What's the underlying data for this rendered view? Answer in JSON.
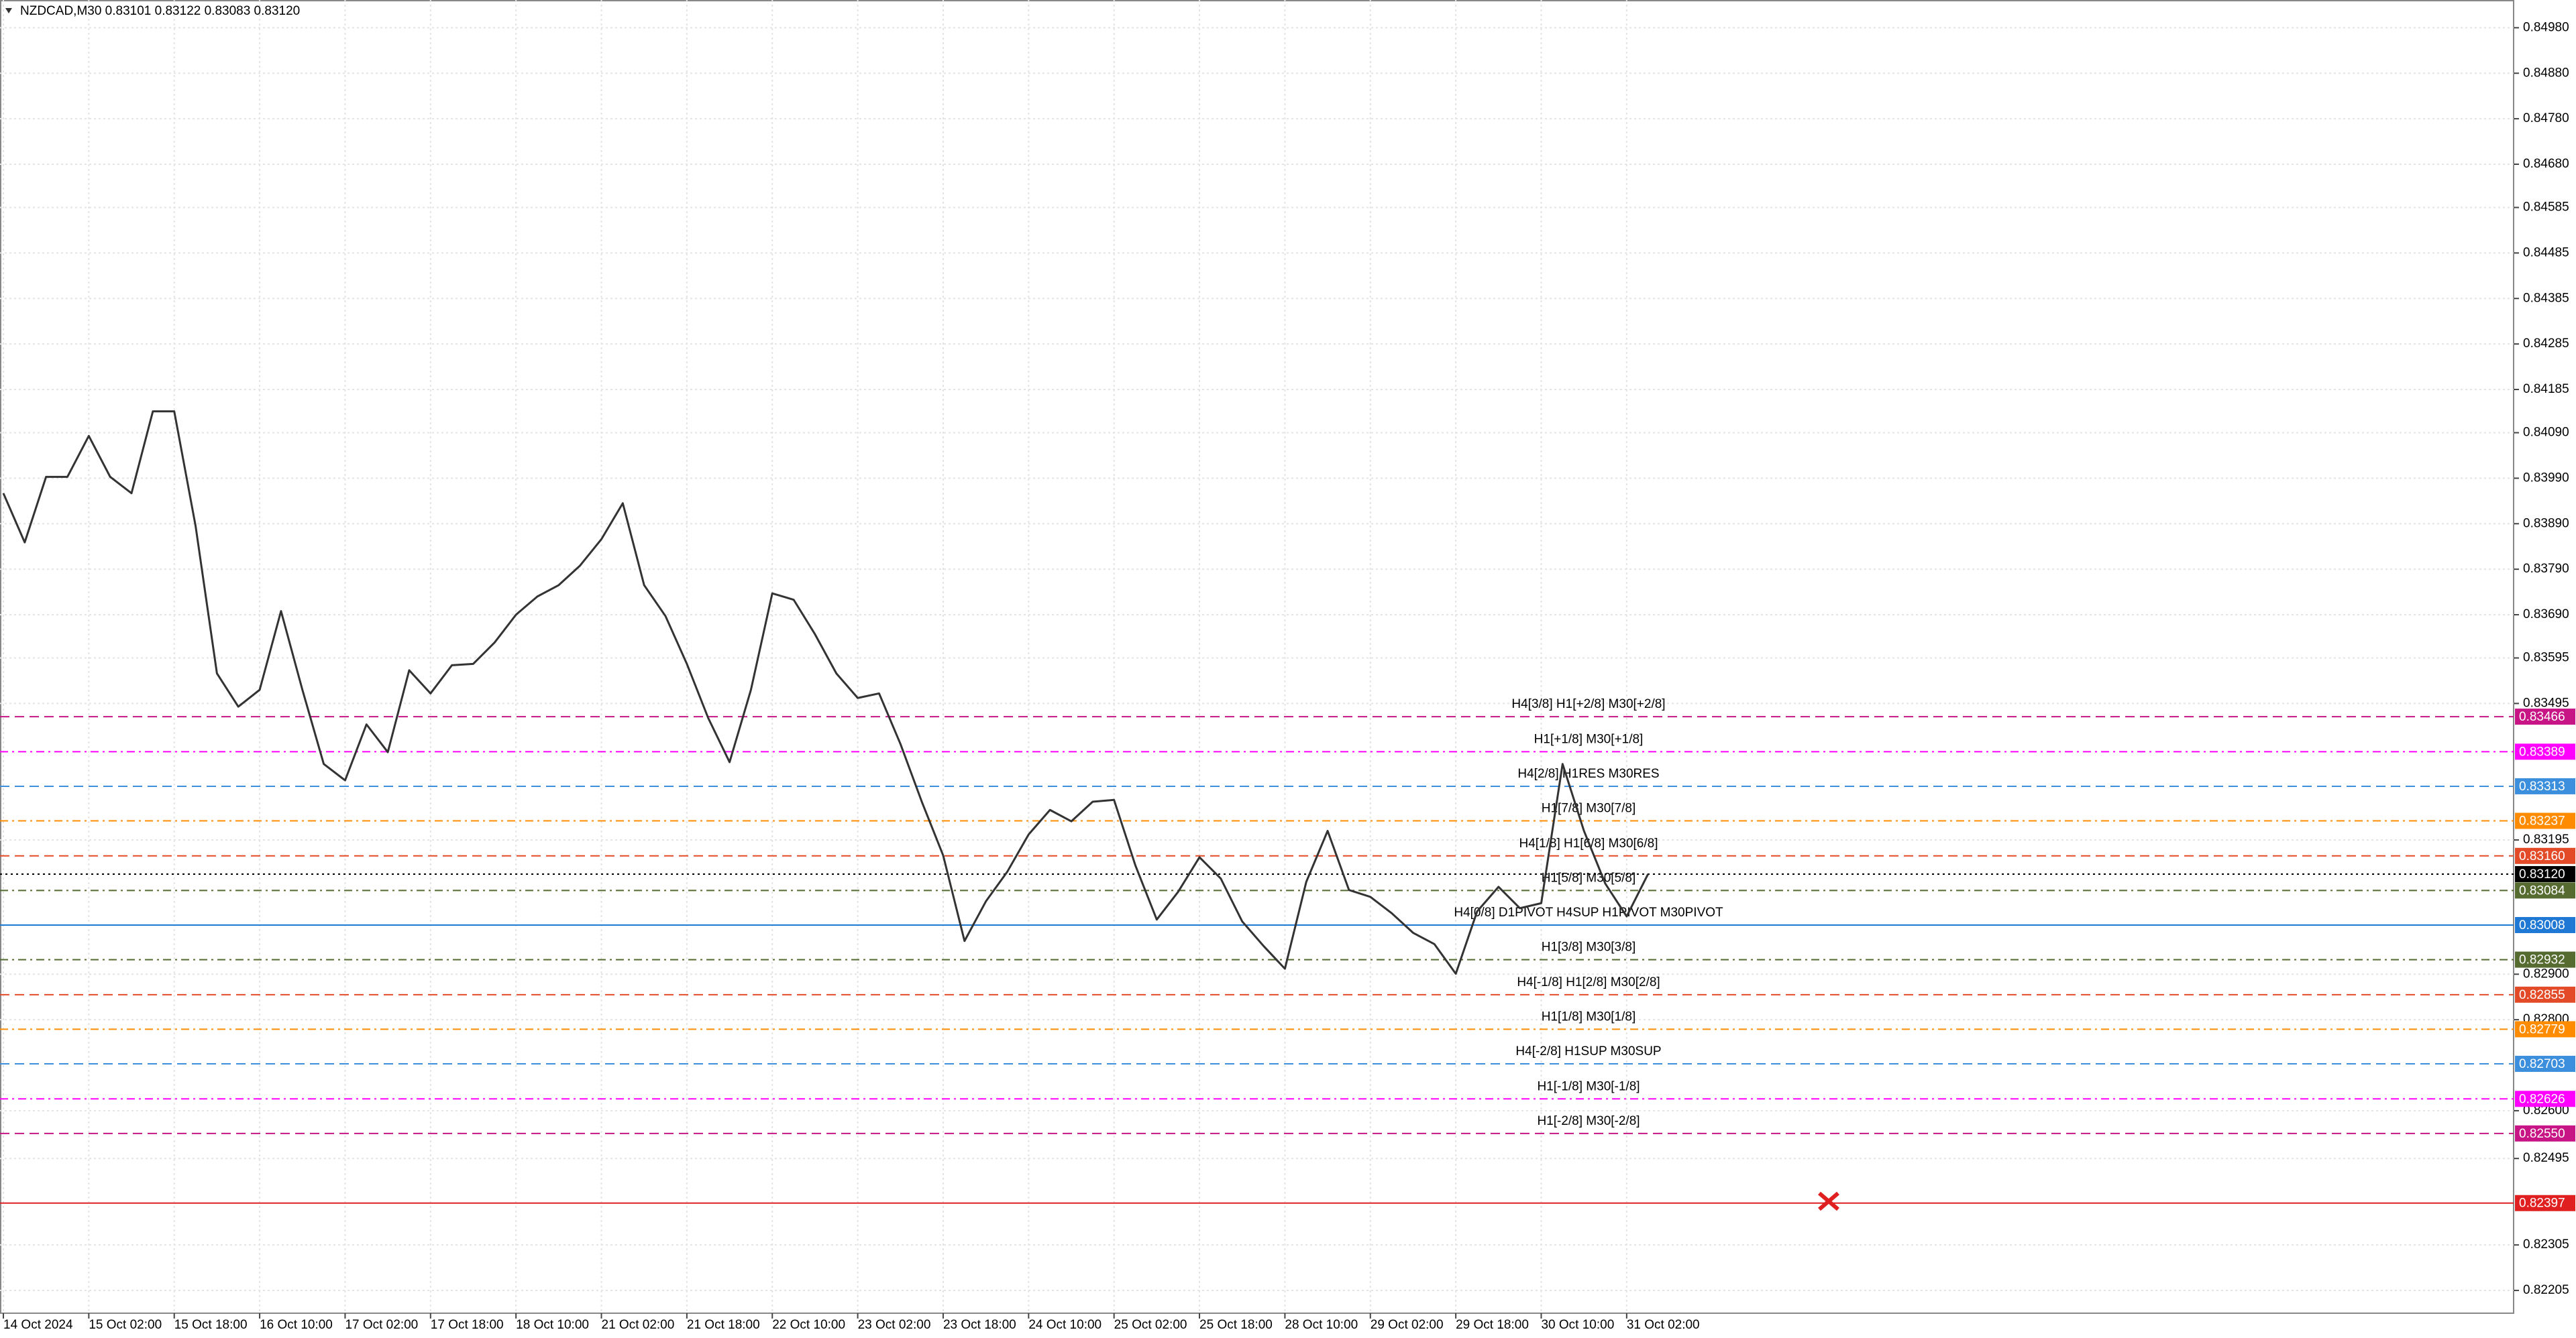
{
  "chart_data": {
    "type": "line",
    "title": "NZDCAD,M30  0.83101 0.83122 0.83083 0.83120",
    "categories": [
      "14 Oct 2024",
      null,
      null,
      null,
      "15 Oct 02:00",
      null,
      null,
      null,
      "15 Oct 18:00",
      null,
      null,
      null,
      "16 Oct 10:00",
      null,
      null,
      null,
      "17 Oct 02:00",
      null,
      null,
      null,
      "17 Oct 18:00",
      null,
      null,
      null,
      "18 Oct 10:00",
      null,
      null,
      null,
      "21 Oct 02:00",
      null,
      null,
      null,
      "21 Oct 18:00",
      null,
      null,
      null,
      "22 Oct 10:00",
      null,
      null,
      null,
      "23 Oct 02:00",
      null,
      null,
      null,
      "23 Oct 18:00",
      null,
      null,
      null,
      "24 Oct 10:00",
      null,
      null,
      null,
      "25 Oct 02:00",
      null,
      null,
      null,
      "25 Oct 18:00",
      null,
      null,
      null,
      "28 Oct 10:00",
      null,
      null,
      null,
      "29 Oct 02:00",
      null,
      null,
      null,
      "29 Oct 18:00",
      null,
      null,
      null,
      "30 Oct 10:00",
      null,
      null,
      null,
      "31 Oct 02:00",
      null
    ],
    "series": [
      {
        "name": "NZDCAD",
        "color": "#333333",
        "values": [
          0.83957,
          0.83849,
          0.83993,
          0.83993,
          0.84083,
          0.83993,
          0.83957,
          0.84137,
          0.84137,
          0.83885,
          0.83561,
          0.83488,
          0.83525,
          0.83698,
          0.83525,
          0.83362,
          0.83326,
          0.83449,
          0.83388,
          0.83568,
          0.83517,
          0.83579,
          0.83582,
          0.83629,
          0.8369,
          0.8373,
          0.83755,
          0.83798,
          0.83856,
          0.83935,
          0.83755,
          0.83687,
          0.83582,
          0.83463,
          0.83366,
          0.83525,
          0.83737,
          0.83723,
          0.83647,
          0.83561,
          0.83507,
          0.83517,
          0.83406,
          0.83279,
          0.83161,
          0.82973,
          0.8306,
          0.83125,
          0.83207,
          0.83261,
          0.83236,
          0.83279,
          0.83283,
          0.83139,
          0.8302,
          0.83081,
          0.83157,
          0.8311,
          0.83016,
          0.82962,
          0.82912,
          0.83103,
          0.83215,
          0.83085,
          0.8307,
          0.83034,
          0.82991,
          0.82966,
          0.82901,
          0.83038,
          0.83092,
          0.83045,
          0.83056,
          0.83362,
          0.83215,
          0.83099,
          0.83027,
          0.8312
        ]
      }
    ],
    "ylim": [
      0.82155,
      0.85038
    ],
    "yticks": [
      {
        "value": 0.8498,
        "label": "0.84980"
      },
      {
        "value": 0.8488,
        "label": "0.84880"
      },
      {
        "value": 0.8478,
        "label": "0.84780"
      },
      {
        "value": 0.8468,
        "label": "0.84680"
      },
      0.84585,
      0.84485,
      0.84385,
      0.84285,
      0.84185,
      {
        "value": 0.8409,
        "label": "0.84090"
      },
      {
        "value": 0.8399,
        "label": "0.83990"
      },
      {
        "value": 0.8389,
        "label": "0.83890"
      },
      {
        "value": 0.8379,
        "label": "0.83790"
      },
      {
        "value": 0.8369,
        "label": "0.83690"
      },
      0.83595,
      0.83495,
      0.83195,
      {
        "value": 0.829,
        "label": "0.82900"
      },
      {
        "value": 0.828,
        "label": "0.82800"
      },
      {
        "value": 0.826,
        "label": "0.82600"
      },
      0.82495,
      0.82305,
      0.82205
    ],
    "grid": true,
    "levels": [
      {
        "price": 0.83466,
        "text": "H4[3/8] H1[+2/8] M30[+2/8]",
        "color": "#c71585",
        "dash": "14 8"
      },
      {
        "price": 0.83389,
        "text": "H1[+1/8] M30[+1/8]",
        "color": "#ff00ff",
        "dash": "12 6 3 6"
      },
      {
        "price": 0.83313,
        "text": "H4[2/8] H1RES M30RES",
        "color": "#3c8fdc",
        "dash": "14 8"
      },
      {
        "price": 0.83237,
        "text": "H1[7/8] M30[7/8]",
        "color": "#ff8c00",
        "dash": "12 6 3 6"
      },
      {
        "price": 0.8316,
        "label": "0.83160",
        "text": "H4[1/8] H1[6/8] M30[6/8]",
        "color": "#e34a27",
        "dash": "14 8"
      },
      {
        "price": 0.8312,
        "label": "0.83120",
        "color": "#000000",
        "dash": "3 5"
      },
      {
        "price": 0.83084,
        "text": "H1[5/8] M30[5/8]",
        "color": "#556b2f",
        "dash": "12 6 3 6"
      },
      {
        "price": 0.83008,
        "text": "H4[0/8] D1PIVOT H4SUP H1PIVOT M30PIVOT",
        "color": "#1e78d4",
        "dash": "none"
      },
      {
        "price": 0.82932,
        "text": "H1[3/8] M30[3/8]",
        "color": "#556b2f",
        "dash": "12 6 3 6"
      },
      {
        "price": 0.82855,
        "text": "H4[-1/8] H1[2/8] M30[2/8]",
        "color": "#e34a27",
        "dash": "14 8"
      },
      {
        "price": 0.82779,
        "text": "H1[1/8] M30[1/8]",
        "color": "#ff8c00",
        "dash": "12 6 3 6"
      },
      {
        "price": 0.82703,
        "text": "H4[-2/8] H1SUP M30SUP",
        "color": "#3c8fdc",
        "dash": "14 8"
      },
      {
        "price": 0.82626,
        "text": "H1[-1/8] M30[-1/8]",
        "color": "#ff00ff",
        "dash": "12 6 3 6"
      },
      {
        "price": 0.8255,
        "label": "0.82550",
        "text": "H1[-2/8] M30[-2/8]",
        "color": "#c71585",
        "dash": "14 8"
      },
      {
        "price": 0.82397,
        "color": "#e02020",
        "dash": "none"
      }
    ]
  }
}
